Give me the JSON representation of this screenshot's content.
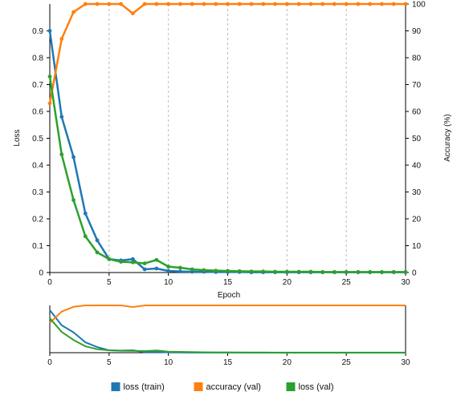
{
  "chart_data": {
    "type": "line",
    "x_label": "Epoch",
    "y_left_label": "Loss",
    "y_right_label": "Accuracy (%)",
    "x_range": [
      0,
      30
    ],
    "y_left_range": [
      0,
      1
    ],
    "y_right_range": [
      0,
      100
    ],
    "x_ticks": [
      "0",
      "5",
      "10",
      "15",
      "20",
      "25",
      "30"
    ],
    "y_left_ticks": [
      "0",
      "0.1",
      "0.2",
      "0.3",
      "0.4",
      "0.5",
      "0.6",
      "0.7",
      "0.8",
      "0.9"
    ],
    "y_right_ticks": [
      "0",
      "10",
      "20",
      "30",
      "40",
      "50",
      "60",
      "70",
      "80",
      "90",
      "100"
    ],
    "grid": "vertical dashed",
    "x": [
      0,
      1,
      2,
      3,
      4,
      5,
      6,
      7,
      8,
      9,
      10,
      11,
      12,
      13,
      14,
      15,
      16,
      17,
      18,
      19,
      20,
      21,
      22,
      23,
      24,
      25,
      26,
      27,
      28,
      29,
      30
    ],
    "series": [
      {
        "name": "loss (train)",
        "axis": "left",
        "color": "#1f77b4",
        "values": [
          0.9,
          0.58,
          0.43,
          0.22,
          0.12,
          0.05,
          0.045,
          0.05,
          0.012,
          0.015,
          0.006,
          0.004,
          0.003,
          0.003,
          0.002,
          0.002,
          0.002,
          0.001,
          0.001,
          0.001,
          0.001,
          0.001,
          0.001,
          0.001,
          0.001,
          0.001,
          0.001,
          0.001,
          0.001,
          0.001,
          0.001
        ]
      },
      {
        "name": "accuracy (val)",
        "axis": "right",
        "color": "#ff7f0e",
        "values": [
          63,
          87,
          97,
          100,
          100,
          100,
          100,
          96.5,
          100,
          100,
          100,
          100,
          100,
          100,
          100,
          100,
          100,
          100,
          100,
          100,
          100,
          100,
          100,
          100,
          100,
          100,
          100,
          100,
          100,
          100,
          100
        ]
      },
      {
        "name": "loss (val)",
        "axis": "left",
        "color": "#2ca02c",
        "values": [
          0.73,
          0.44,
          0.27,
          0.135,
          0.075,
          0.05,
          0.04,
          0.038,
          0.034,
          0.047,
          0.022,
          0.018,
          0.012,
          0.009,
          0.007,
          0.006,
          0.005,
          0.004,
          0.004,
          0.003,
          0.003,
          0.003,
          0.003,
          0.002,
          0.002,
          0.002,
          0.002,
          0.002,
          0.002,
          0.002,
          0.002
        ]
      }
    ],
    "overview_x_ticks": [
      "0",
      "5",
      "10",
      "15",
      "20",
      "25",
      "30"
    ],
    "legend_position": "bottom"
  }
}
